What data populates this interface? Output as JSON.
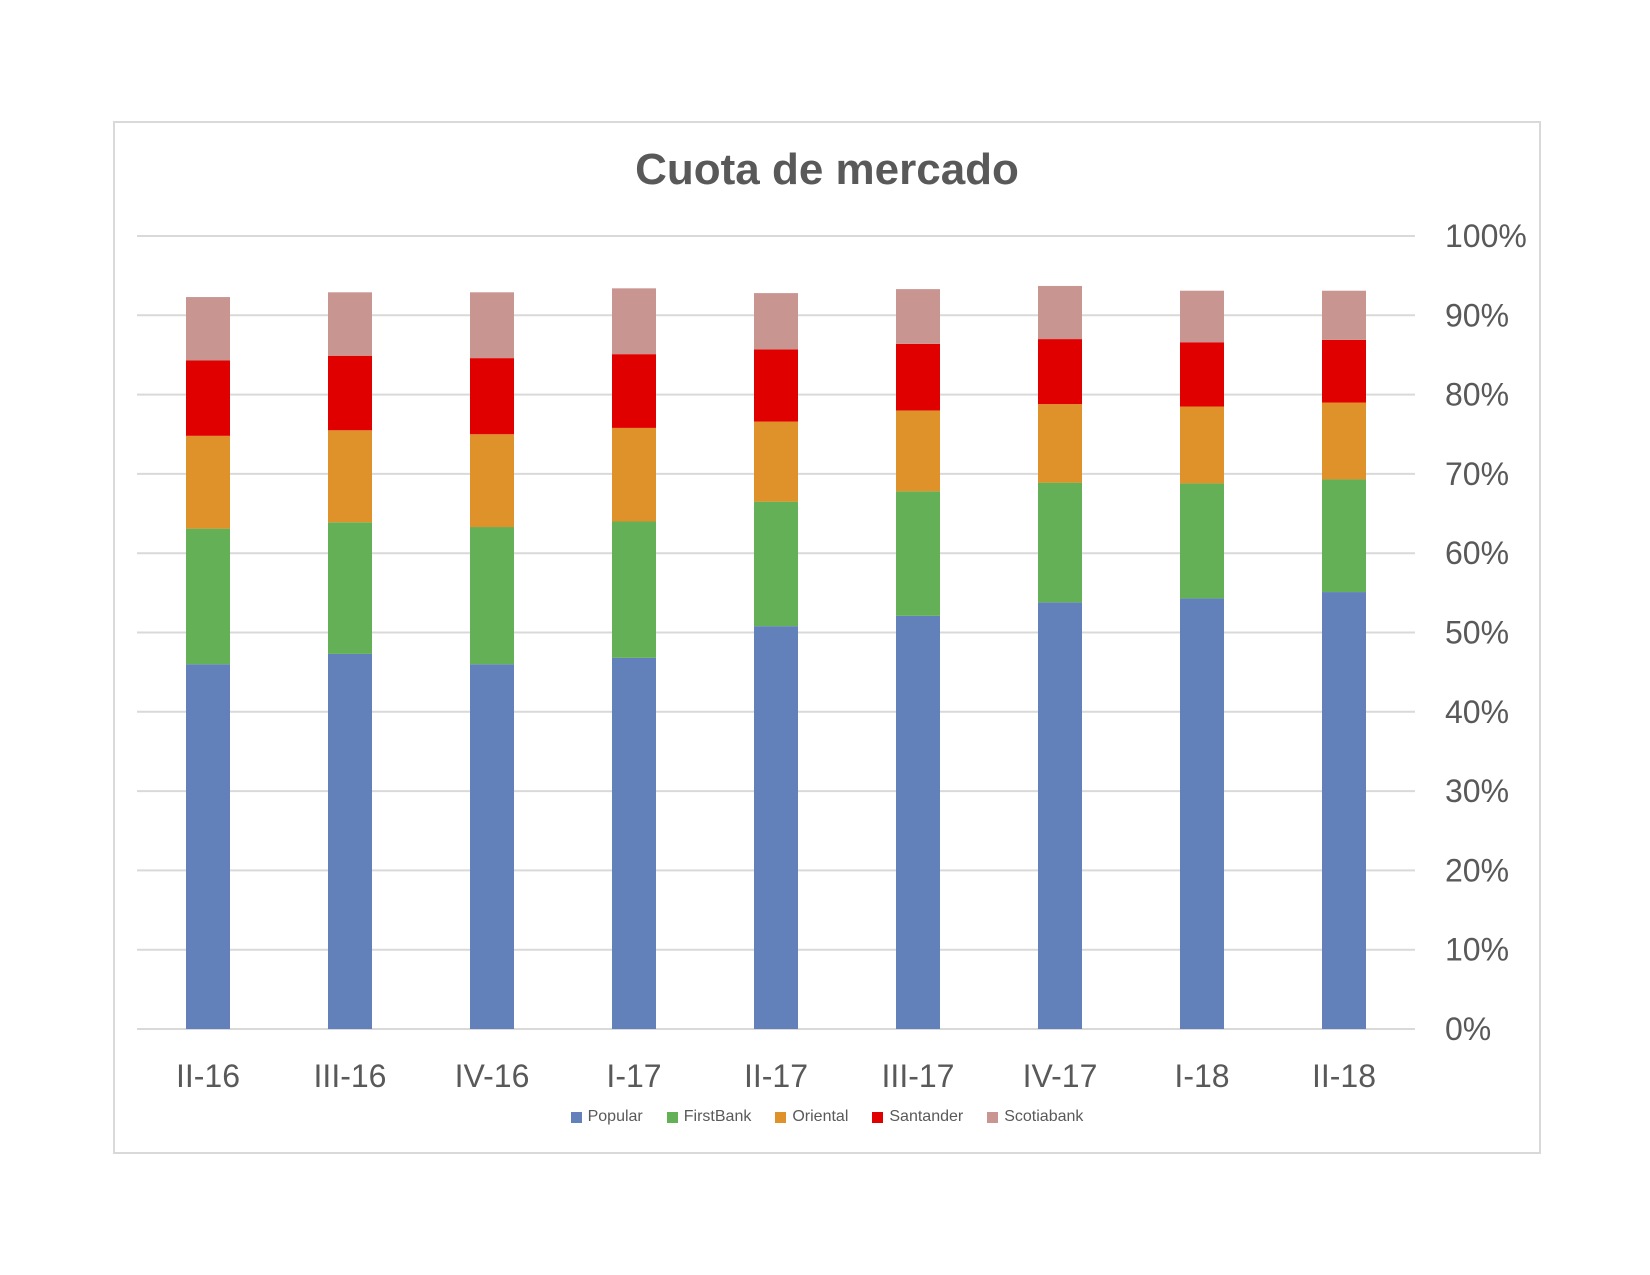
{
  "chart_data": {
    "type": "bar",
    "stacked": true,
    "title": "Cuota de mercado",
    "xlabel": "",
    "ylabel": "",
    "ylim": [
      0,
      100
    ],
    "yticks": [
      "0%",
      "10%",
      "20%",
      "30%",
      "40%",
      "50%",
      "60%",
      "70%",
      "80%",
      "90%",
      "100%"
    ],
    "y_axis_position": "right",
    "grid": true,
    "legend_position": "bottom",
    "categories": [
      "II-16",
      "III-16",
      "IV-16",
      "I-17",
      "II-17",
      "III-17",
      "IV-17",
      "I-18",
      "II-18"
    ],
    "series": [
      {
        "name": "Popular",
        "color": "#6281ba",
        "values": [
          46.0,
          47.3,
          46.0,
          46.8,
          50.8,
          52.1,
          53.8,
          54.3,
          55.1
        ]
      },
      {
        "name": "FirstBank",
        "color": "#63b057",
        "values": [
          17.1,
          16.6,
          17.3,
          17.2,
          15.7,
          15.7,
          15.1,
          14.5,
          14.2
        ]
      },
      {
        "name": "Oriental",
        "color": "#e0922a",
        "values": [
          11.7,
          11.6,
          11.7,
          11.8,
          10.1,
          10.2,
          9.9,
          9.7,
          9.7
        ]
      },
      {
        "name": "Santander",
        "color": "#e00000",
        "values": [
          9.5,
          9.4,
          9.6,
          9.3,
          9.1,
          8.4,
          8.2,
          8.1,
          7.9
        ]
      },
      {
        "name": "Scotiabank",
        "color": "#c99591",
        "values": [
          8.0,
          8.0,
          8.3,
          8.3,
          7.1,
          6.9,
          6.7,
          6.5,
          6.2
        ]
      }
    ]
  }
}
